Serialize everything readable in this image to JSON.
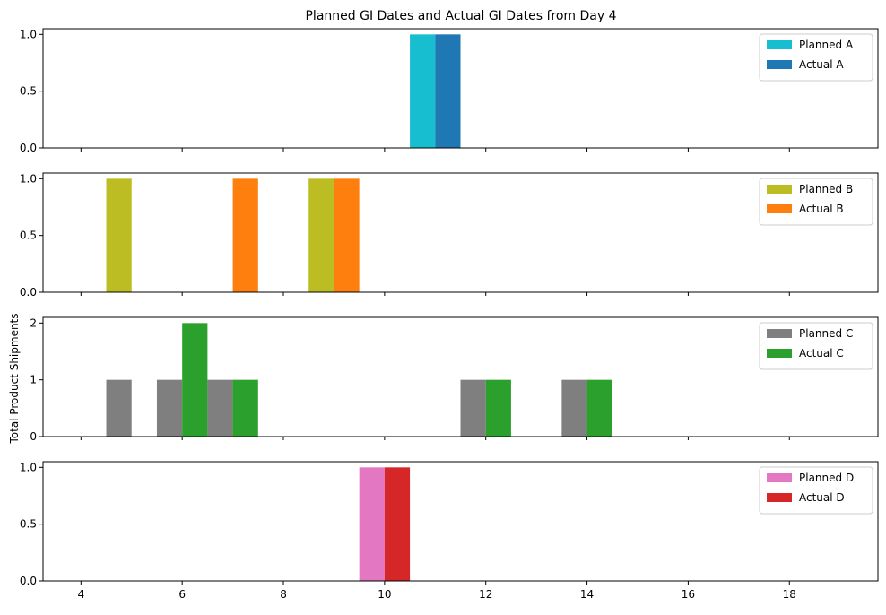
{
  "chart_data": {
    "type": "bar",
    "title": "Planned GI Dates and Actual GI Dates from Day 4",
    "ylabel": "Total Product Shipments",
    "xlabel": "",
    "xlim": [
      3.25,
      19.75
    ],
    "xticks": [
      4,
      6,
      8,
      10,
      12,
      14,
      16,
      18
    ],
    "bar_width": 0.5,
    "legend_placement": "top-right",
    "grid": false,
    "panels": [
      {
        "ylim": [
          0,
          1.05
        ],
        "yticks": [
          "0.0",
          "0.5",
          "1.0"
        ],
        "ytick_values": [
          0,
          0.5,
          1.0
        ],
        "series": [
          {
            "name": "Planned A",
            "color": "#17becf",
            "offset": -0.5,
            "x": [
              11
            ],
            "values": [
              1
            ]
          },
          {
            "name": "Actual A",
            "color": "#1f77b4",
            "offset": 0,
            "x": [
              11
            ],
            "values": [
              1
            ]
          }
        ]
      },
      {
        "ylim": [
          0,
          1.05
        ],
        "yticks": [
          "0.0",
          "0.5",
          "1.0"
        ],
        "ytick_values": [
          0,
          0.5,
          1.0
        ],
        "series": [
          {
            "name": "Planned B",
            "color": "#bcbd22",
            "offset": -0.5,
            "x": [
              5,
              9
            ],
            "values": [
              1,
              1
            ]
          },
          {
            "name": "Actual B",
            "color": "#ff7f0e",
            "offset": 0,
            "x": [
              7,
              9
            ],
            "values": [
              1,
              1
            ]
          }
        ]
      },
      {
        "ylim": [
          0,
          2.1
        ],
        "yticks": [
          "0",
          "1",
          "2"
        ],
        "ytick_values": [
          0,
          1,
          2
        ],
        "series": [
          {
            "name": "Planned C",
            "color": "#7f7f7f",
            "offset": -0.5,
            "x": [
              5,
              6,
              7,
              12,
              14
            ],
            "values": [
              1,
              1,
              1,
              1,
              1
            ]
          },
          {
            "name": "Actual C",
            "color": "#2ca02c",
            "offset": 0,
            "x": [
              6,
              7,
              12,
              14
            ],
            "values": [
              2,
              1,
              1,
              1
            ]
          }
        ]
      },
      {
        "ylim": [
          0,
          1.05
        ],
        "yticks": [
          "0.0",
          "0.5",
          "1.0"
        ],
        "ytick_values": [
          0,
          0.5,
          1.0
        ],
        "series": [
          {
            "name": "Planned D",
            "color": "#e377c2",
            "offset": -0.5,
            "x": [
              10
            ],
            "values": [
              1
            ]
          },
          {
            "name": "Actual D",
            "color": "#d62728",
            "offset": 0,
            "x": [
              10
            ],
            "values": [
              1
            ]
          }
        ]
      }
    ]
  }
}
